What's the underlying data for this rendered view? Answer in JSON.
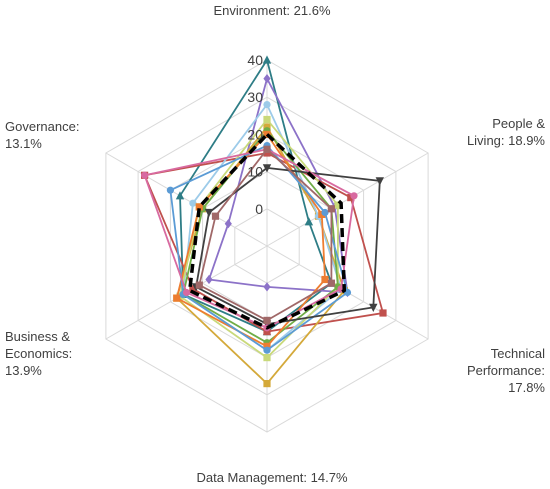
{
  "chart_data": {
    "type": "radar",
    "axes": [
      {
        "name": "Environment",
        "weight": "21.6%"
      },
      {
        "name": "People & Living",
        "weight": "18.9%"
      },
      {
        "name": "Technical Performance",
        "weight": "17.8%"
      },
      {
        "name": "Data Management",
        "weight": "14.7%"
      },
      {
        "name": "Business & Economics",
        "weight": "13.9%"
      },
      {
        "name": "Governance",
        "weight": "13.1%"
      }
    ],
    "axis_label_lines": [
      [
        "Environment: 21.6%"
      ],
      [
        "People &",
        "Living: 18.9%"
      ],
      [
        "Technical",
        "Performance:",
        "17.8%"
      ],
      [
        "Data Management: 14.7%"
      ],
      [
        "Business &",
        "Economics:",
        "13.9%"
      ],
      [
        "Governance:",
        "13.1%"
      ]
    ],
    "ticks": [
      "0",
      "10",
      "20",
      "30",
      "40"
    ],
    "rmin": -10,
    "rmax": 40,
    "grid": true,
    "series": [
      {
        "color": "#2e7d86",
        "marker": "triangle",
        "values": [
          40,
          3,
          10,
          13,
          16,
          17
        ]
      },
      {
        "color": "#8c72c8",
        "marker": "diamond",
        "values": [
          35,
          11,
          15,
          1,
          8,
          2
        ]
      },
      {
        "color": "#c0504d",
        "marker": "square",
        "values": [
          15,
          16,
          26,
          13,
          13,
          28
        ]
      },
      {
        "color": "#d4a93a",
        "marker": "square",
        "values": [
          22,
          6,
          14,
          27,
          18,
          10
        ]
      },
      {
        "color": "#9dcbe9",
        "marker": "circle",
        "values": [
          28,
          6,
          13,
          18,
          16,
          13
        ]
      },
      {
        "color": "#c9d97a",
        "marker": "square",
        "values": [
          24,
          12,
          12,
          20,
          17,
          11
        ]
      },
      {
        "color": "#70ad47",
        "marker": "circle",
        "values": [
          21,
          10,
          12,
          16,
          16,
          10
        ]
      },
      {
        "color": "#ed7d31",
        "marker": "square",
        "values": [
          20,
          7,
          8,
          17,
          18,
          11
        ]
      },
      {
        "color": "#5b9bd5",
        "marker": "circle",
        "values": [
          17,
          8,
          15,
          18,
          16,
          20
        ]
      },
      {
        "color": "#404040",
        "marker": "triangle-down",
        "values": [
          11,
          25,
          23,
          11,
          12,
          8
        ]
      },
      {
        "color": "#d86aa0",
        "marker": "circle",
        "values": [
          16,
          17,
          13,
          12,
          15,
          28
        ]
      },
      {
        "color": "#a06868",
        "marker": "square",
        "values": [
          16,
          10,
          10,
          10,
          11,
          6
        ]
      },
      {
        "color": "#000000",
        "marker": "none",
        "dashed": true,
        "values": [
          20,
          13,
          14,
          12,
          14,
          11
        ]
      }
    ]
  }
}
